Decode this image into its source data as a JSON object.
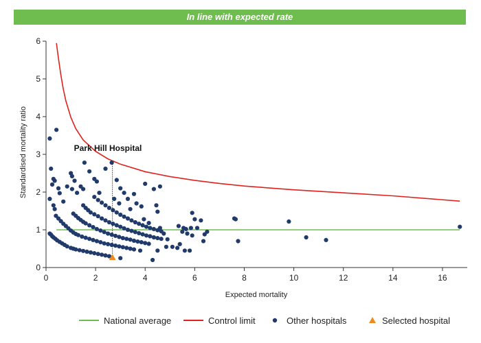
{
  "banner": {
    "text": "In line with expected rate"
  },
  "colors": {
    "banner": "#6ebd4e",
    "national_average": "#6ebd4e",
    "control_limit": "#e0211d",
    "other_hospitals": "#1f3a6b",
    "selected_hospital": "#ef8b1e"
  },
  "chart_data": {
    "type": "scatter",
    "xlabel": "Expected mortality",
    "ylabel": "Standardised mortality ratio",
    "xlim": [
      0,
      17
    ],
    "ylim": [
      0,
      6
    ],
    "xticks": [
      0,
      2,
      4,
      6,
      8,
      10,
      12,
      14,
      16
    ],
    "yticks": [
      0,
      1,
      2,
      3,
      4,
      5,
      6
    ],
    "grid": false,
    "legend_position": "bottom",
    "legend": [
      "National average",
      "Control limit",
      "Other hospitals",
      "Selected hospital"
    ],
    "annotation": {
      "text": "Park Hill Hospital",
      "x": 2.68,
      "y": 2.78
    },
    "national_average": 1,
    "control_limit": [
      [
        0.42,
        5.95
      ],
      [
        0.5,
        5.55
      ],
      [
        0.6,
        5.1
      ],
      [
        0.7,
        4.72
      ],
      [
        0.8,
        4.42
      ],
      [
        1.0,
        3.98
      ],
      [
        1.2,
        3.68
      ],
      [
        1.5,
        3.38
      ],
      [
        2.0,
        3.08
      ],
      [
        2.5,
        2.88
      ],
      [
        3.0,
        2.74
      ],
      [
        4.0,
        2.54
      ],
      [
        5.0,
        2.41
      ],
      [
        6.0,
        2.31
      ],
      [
        7.0,
        2.23
      ],
      [
        8.0,
        2.16
      ],
      [
        10.0,
        2.06
      ],
      [
        12.0,
        1.98
      ],
      [
        14.0,
        1.9
      ],
      [
        16.7,
        1.76
      ]
    ],
    "series": [
      {
        "name": "Other hospitals",
        "points": [
          [
            0.15,
            0.9
          ],
          [
            0.2,
            0.87
          ],
          [
            0.25,
            0.83
          ],
          [
            0.3,
            0.8
          ],
          [
            0.38,
            0.76
          ],
          [
            0.45,
            0.72
          ],
          [
            0.55,
            0.68
          ],
          [
            0.65,
            0.64
          ],
          [
            0.75,
            0.6
          ],
          [
            0.85,
            0.56
          ],
          [
            1.0,
            0.52
          ],
          [
            1.1,
            0.5
          ],
          [
            1.2,
            0.48
          ],
          [
            1.35,
            0.46
          ],
          [
            1.5,
            0.44
          ],
          [
            1.65,
            0.42
          ],
          [
            1.8,
            0.4
          ],
          [
            1.95,
            0.38
          ],
          [
            2.1,
            0.36
          ],
          [
            2.25,
            0.34
          ],
          [
            2.4,
            0.32
          ],
          [
            2.55,
            0.3
          ],
          [
            0.4,
            1.37
          ],
          [
            0.5,
            1.3
          ],
          [
            0.6,
            1.23
          ],
          [
            0.7,
            1.16
          ],
          [
            0.8,
            1.1
          ],
          [
            0.9,
            1.04
          ],
          [
            1.0,
            0.98
          ],
          [
            1.1,
            0.93
          ],
          [
            1.2,
            0.89
          ],
          [
            1.3,
            0.86
          ],
          [
            1.45,
            0.82
          ],
          [
            1.6,
            0.79
          ],
          [
            1.75,
            0.76
          ],
          [
            1.9,
            0.73
          ],
          [
            2.05,
            0.7
          ],
          [
            2.2,
            0.67
          ],
          [
            2.35,
            0.64
          ],
          [
            2.5,
            0.62
          ],
          [
            2.65,
            0.6
          ],
          [
            2.8,
            0.58
          ],
          [
            2.95,
            0.56
          ],
          [
            3.1,
            0.54
          ],
          [
            3.25,
            0.52
          ],
          [
            3.4,
            0.5
          ],
          [
            3.55,
            0.48
          ],
          [
            1.1,
            1.43
          ],
          [
            1.2,
            1.37
          ],
          [
            1.3,
            1.31
          ],
          [
            1.4,
            1.26
          ],
          [
            1.5,
            1.21
          ],
          [
            1.6,
            1.17
          ],
          [
            1.75,
            1.12
          ],
          [
            1.9,
            1.07
          ],
          [
            2.05,
            1.02
          ],
          [
            2.2,
            0.98
          ],
          [
            2.35,
            0.94
          ],
          [
            2.5,
            0.9
          ],
          [
            2.65,
            0.87
          ],
          [
            2.8,
            0.84
          ],
          [
            2.95,
            0.81
          ],
          [
            3.1,
            0.78
          ],
          [
            3.25,
            0.76
          ],
          [
            3.4,
            0.74
          ],
          [
            3.55,
            0.71
          ],
          [
            3.7,
            0.69
          ],
          [
            3.85,
            0.67
          ],
          [
            4.0,
            0.65
          ],
          [
            4.15,
            0.63
          ],
          [
            1.5,
            1.65
          ],
          [
            1.6,
            1.58
          ],
          [
            1.7,
            1.52
          ],
          [
            1.8,
            1.46
          ],
          [
            1.95,
            1.41
          ],
          [
            2.1,
            1.36
          ],
          [
            2.25,
            1.3
          ],
          [
            2.4,
            1.25
          ],
          [
            2.55,
            1.2
          ],
          [
            2.7,
            1.16
          ],
          [
            2.85,
            1.12
          ],
          [
            3.0,
            1.08
          ],
          [
            3.15,
            1.04
          ],
          [
            3.3,
            1.0
          ],
          [
            3.45,
            0.97
          ],
          [
            3.6,
            0.94
          ],
          [
            3.75,
            0.91
          ],
          [
            3.9,
            0.88
          ],
          [
            4.05,
            0.85
          ],
          [
            4.2,
            0.83
          ],
          [
            4.35,
            0.8
          ],
          [
            4.5,
            0.78
          ],
          [
            4.65,
            0.76
          ],
          [
            1.95,
            1.87
          ],
          [
            2.1,
            1.79
          ],
          [
            2.25,
            1.72
          ],
          [
            2.4,
            1.65
          ],
          [
            2.55,
            1.58
          ],
          [
            2.7,
            1.52
          ],
          [
            2.85,
            1.46
          ],
          [
            3.0,
            1.4
          ],
          [
            3.15,
            1.35
          ],
          [
            3.3,
            1.3
          ],
          [
            3.45,
            1.25
          ],
          [
            3.6,
            1.2
          ],
          [
            3.75,
            1.16
          ],
          [
            3.9,
            1.12
          ],
          [
            4.05,
            1.08
          ],
          [
            4.2,
            1.05
          ],
          [
            4.35,
            1.02
          ],
          [
            4.5,
            0.99
          ],
          [
            4.65,
            0.96
          ],
          [
            0.15,
            3.42
          ],
          [
            0.2,
            2.62
          ],
          [
            0.25,
            2.2
          ],
          [
            0.3,
            2.35
          ],
          [
            0.35,
            2.3
          ],
          [
            0.42,
            3.65
          ],
          [
            0.5,
            2.1
          ],
          [
            0.55,
            1.97
          ],
          [
            0.3,
            1.65
          ],
          [
            0.35,
            1.55
          ],
          [
            0.15,
            1.82
          ],
          [
            0.7,
            1.75
          ],
          [
            0.85,
            2.15
          ],
          [
            1.0,
            2.5
          ],
          [
            1.05,
            2.42
          ],
          [
            1.15,
            2.3
          ],
          [
            1.05,
            2.08
          ],
          [
            1.25,
            1.98
          ],
          [
            1.4,
            2.15
          ],
          [
            1.5,
            2.08
          ],
          [
            1.55,
            2.78
          ],
          [
            1.75,
            2.55
          ],
          [
            1.95,
            2.35
          ],
          [
            2.05,
            2.28
          ],
          [
            2.15,
            1.98
          ],
          [
            2.4,
            2.62
          ],
          [
            2.65,
            2.78
          ],
          [
            2.85,
            2.32
          ],
          [
            3.0,
            2.1
          ],
          [
            3.15,
            1.98
          ],
          [
            2.75,
            1.82
          ],
          [
            2.95,
            1.7
          ],
          [
            3.3,
            1.82
          ],
          [
            3.4,
            1.55
          ],
          [
            3.55,
            1.95
          ],
          [
            3.65,
            1.7
          ],
          [
            3.85,
            1.62
          ],
          [
            4.0,
            2.22
          ],
          [
            4.35,
            2.08
          ],
          [
            4.6,
            2.15
          ],
          [
            4.45,
            1.65
          ],
          [
            4.5,
            1.48
          ],
          [
            3.95,
            1.28
          ],
          [
            4.15,
            1.18
          ],
          [
            4.6,
            1.05
          ],
          [
            4.75,
            0.9
          ],
          [
            4.9,
            0.75
          ],
          [
            5.1,
            0.55
          ],
          [
            5.3,
            0.52
          ],
          [
            5.5,
            0.95
          ],
          [
            5.35,
            1.1
          ],
          [
            5.55,
            1.05
          ],
          [
            5.65,
            1.02
          ],
          [
            5.85,
            1.05
          ],
          [
            5.7,
            0.9
          ],
          [
            5.9,
            0.85
          ],
          [
            6.0,
            1.28
          ],
          [
            6.1,
            1.05
          ],
          [
            6.25,
            1.25
          ],
          [
            6.4,
            0.88
          ],
          [
            6.35,
            0.7
          ],
          [
            6.5,
            0.95
          ],
          [
            5.9,
            1.45
          ],
          [
            5.8,
            0.45
          ],
          [
            5.6,
            0.45
          ],
          [
            5.4,
            0.62
          ],
          [
            4.85,
            0.55
          ],
          [
            4.5,
            0.45
          ],
          [
            4.3,
            0.2
          ],
          [
            3.8,
            0.45
          ],
          [
            3.0,
            0.25
          ],
          [
            7.6,
            1.3
          ],
          [
            7.65,
            1.28
          ],
          [
            7.75,
            0.7
          ],
          [
            9.8,
            1.22
          ],
          [
            10.5,
            0.8
          ],
          [
            11.3,
            0.73
          ],
          [
            16.7,
            1.08
          ]
        ]
      },
      {
        "name": "Selected hospital",
        "points": [
          [
            2.68,
            0.27
          ]
        ]
      }
    ]
  }
}
